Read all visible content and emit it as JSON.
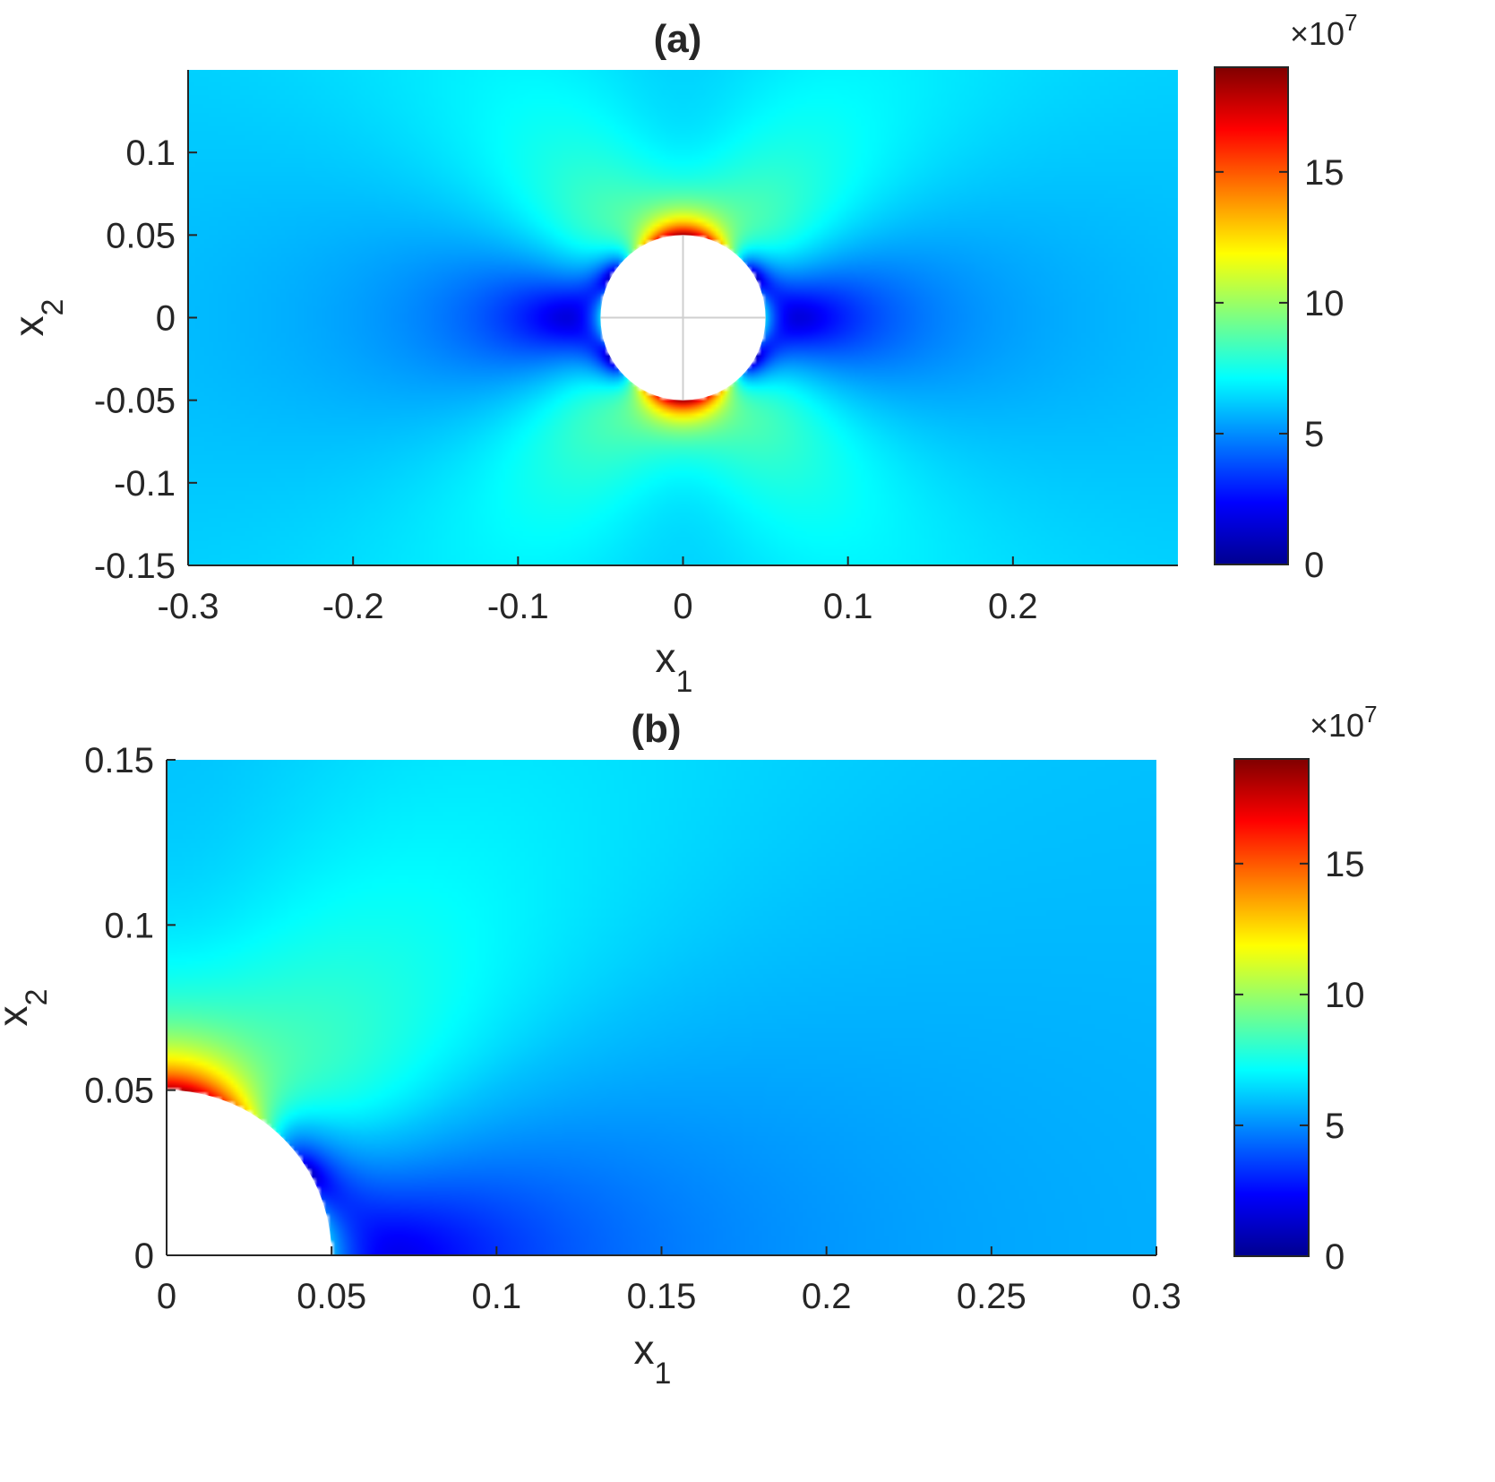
{
  "chart_data": [
    {
      "panel": "(a)",
      "type": "heatmap",
      "title": "(a)",
      "xlabel": "x",
      "xlabel_subscript": "1",
      "ylabel": "x",
      "ylabel_subscript": "2",
      "xlim": [
        -0.3,
        0.3
      ],
      "ylim": [
        -0.15,
        0.15
      ],
      "xticks": [
        -0.3,
        -0.2,
        -0.1,
        0,
        0.1,
        0.2
      ],
      "xtick_labels": [
        "-0.3",
        "-0.2",
        "-0.1",
        "0",
        "0.1",
        "0.2"
      ],
      "yticks": [
        -0.15,
        -0.1,
        -0.05,
        0,
        0.05,
        0.1
      ],
      "ytick_labels": [
        "-0.15",
        "-0.1",
        "-0.05",
        "0",
        "0.05",
        "0.1"
      ],
      "hole": {
        "center": [
          0,
          0
        ],
        "radius": 0.05
      },
      "far_field_value": 6.3,
      "max_value_near_hole": 18.5,
      "min_value_near_hole": 0.5,
      "colormap": "jet",
      "colorbar": {
        "clim": [
          0,
          19
        ],
        "ticks": [
          0,
          5,
          10,
          15
        ],
        "tick_labels": [
          "0",
          "5",
          "10",
          "15"
        ],
        "multiplier_prefix": "×10",
        "multiplier_exponent": "7"
      }
    },
    {
      "panel": "(b)",
      "type": "heatmap",
      "title": "(b)",
      "xlabel": "x",
      "xlabel_subscript": "1",
      "ylabel": "x",
      "ylabel_subscript": "2",
      "xlim": [
        0,
        0.3
      ],
      "ylim": [
        0,
        0.15
      ],
      "xticks": [
        0,
        0.05,
        0.1,
        0.15,
        0.2,
        0.25,
        0.3
      ],
      "xtick_labels": [
        "0",
        "0.05",
        "0.1",
        "0.15",
        "0.2",
        "0.25",
        "0.3"
      ],
      "yticks": [
        0,
        0.05,
        0.1,
        0.15
      ],
      "ytick_labels": [
        "0",
        "0.05",
        "0.1",
        "0.15"
      ],
      "hole": {
        "center": [
          0,
          0
        ],
        "radius": 0.05
      },
      "far_field_value": 6.0,
      "max_value_near_hole": 18.5,
      "min_value_near_hole": 1.0,
      "colormap": "jet",
      "colorbar": {
        "clim": [
          0,
          19
        ],
        "ticks": [
          0,
          5,
          10,
          15
        ],
        "tick_labels": [
          "0",
          "5",
          "10",
          "15"
        ],
        "multiplier_prefix": "×10",
        "multiplier_exponent": "7"
      }
    }
  ]
}
